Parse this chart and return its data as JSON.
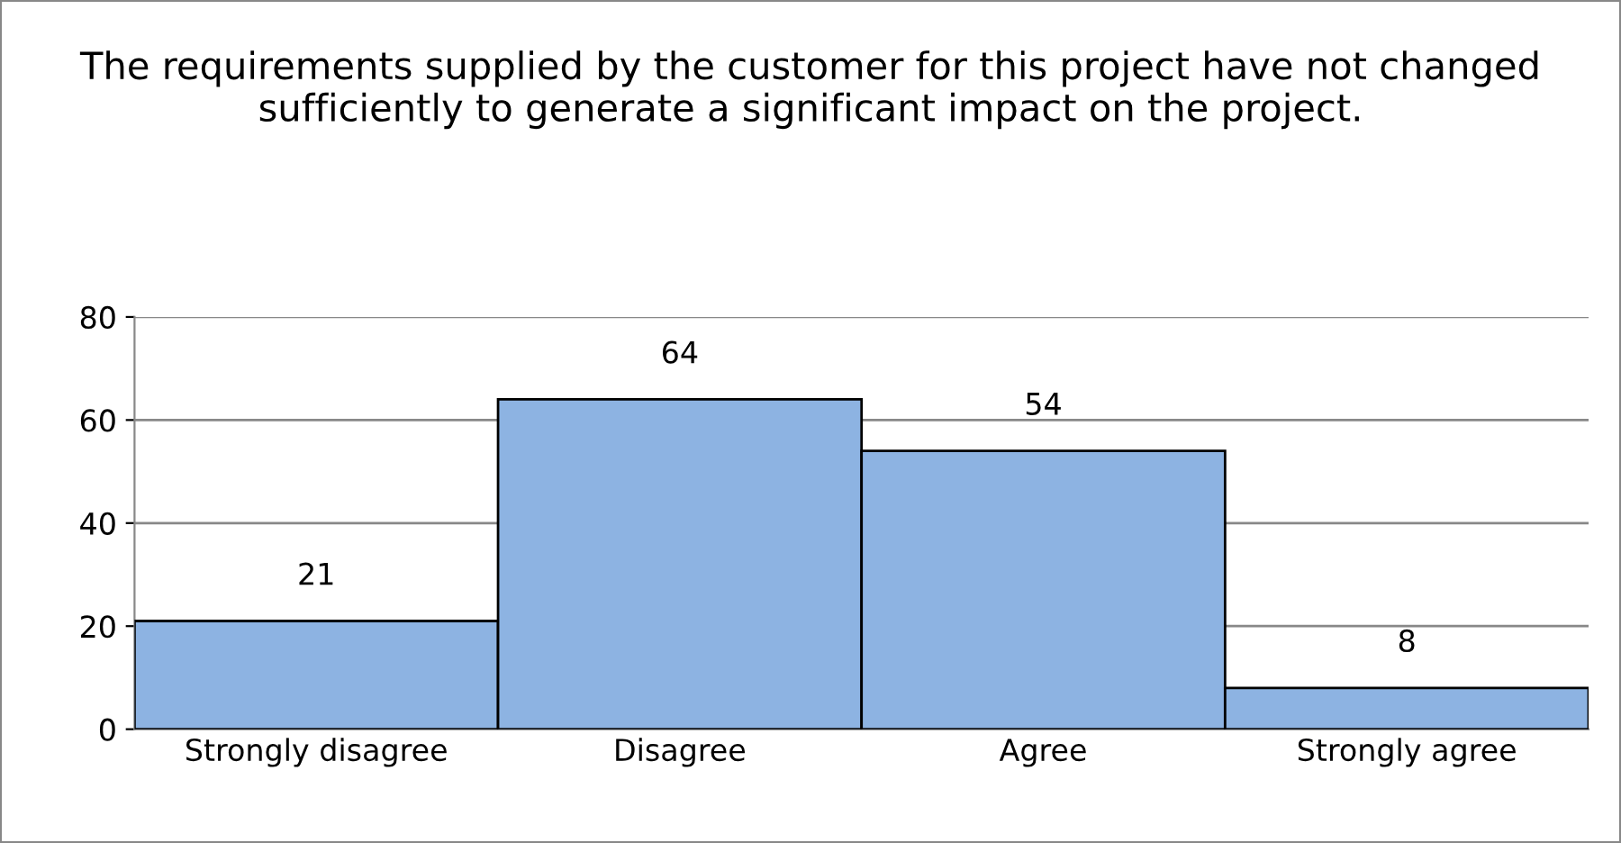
{
  "chart_data": {
    "type": "bar",
    "title": "The requirements supplied by the customer for this project have not changed sufficiently to generate a significant impact on the project.",
    "categories": [
      "Strongly disagree",
      "Disagree",
      "Agree",
      "Strongly agree"
    ],
    "values": [
      21,
      64,
      54,
      8
    ],
    "color": "#8db3e2",
    "ylim": [
      0,
      80
    ],
    "yticks": [
      0,
      20,
      40,
      60,
      80
    ],
    "grid": "y",
    "data_labels": true
  }
}
